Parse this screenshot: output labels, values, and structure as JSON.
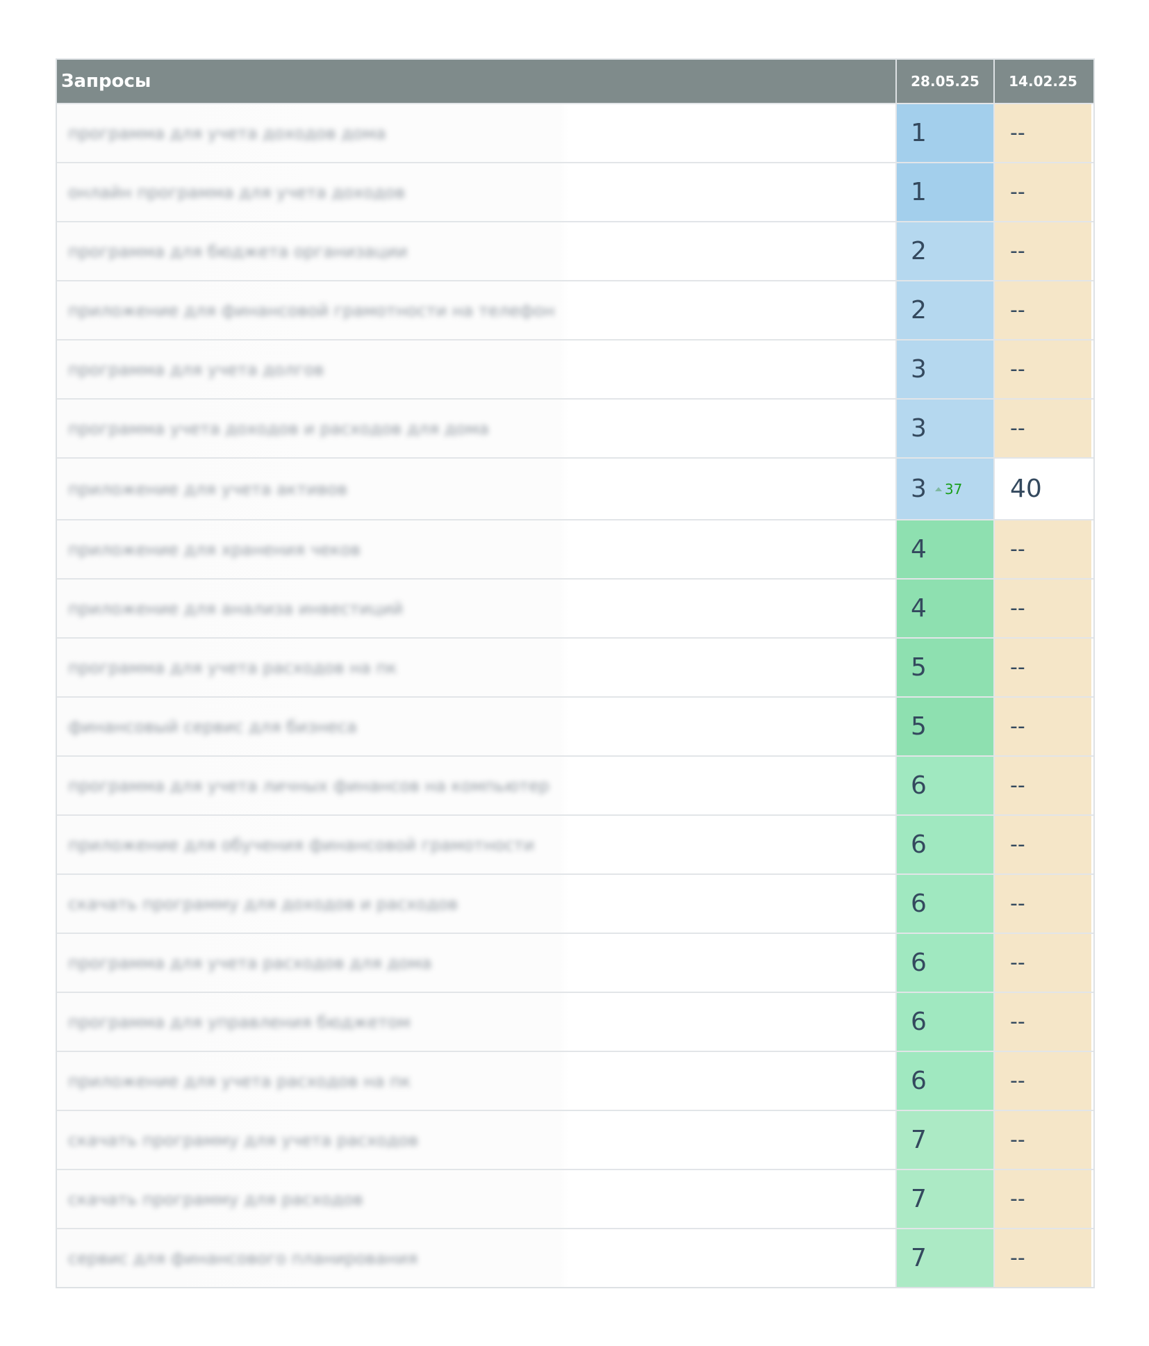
{
  "header": {
    "query_col": "Запросы",
    "dates": [
      "28.05.25",
      "14.02.25"
    ]
  },
  "colors": {
    "header": "#7f8b8b",
    "pos1": "#a3cfec",
    "pos2_3": "#b5d8ef",
    "pos4_5": "#8ee0b0",
    "pos6": "#a0e8c0",
    "pos7": "#aceac5",
    "no_data": "#f5e6c8",
    "change_up": "#1a9e1a"
  },
  "rows": [
    {
      "query": "программа для учета доходов дома",
      "pos": "1",
      "prev": "--"
    },
    {
      "query": "онлайн программа для учета доходов",
      "pos": "1",
      "prev": "--"
    },
    {
      "query": "программа для бюджета организации",
      "pos": "2",
      "prev": "--"
    },
    {
      "query": "приложение для финансовой грамотности на телефон",
      "pos": "2",
      "prev": "--"
    },
    {
      "query": "программа для учета долгов",
      "pos": "3",
      "prev": "--"
    },
    {
      "query": "программа учета доходов и расходов для дома",
      "pos": "3",
      "prev": "--"
    },
    {
      "query": "приложение для учета активов",
      "pos": "3",
      "change": "37",
      "change_icon": "triangle-up-icon",
      "prev": "40"
    },
    {
      "query": "приложение для хранения чеков",
      "pos": "4",
      "prev": "--"
    },
    {
      "query": "приложение для анализа инвестиций",
      "pos": "4",
      "prev": "--"
    },
    {
      "query": "программа для учета расходов на пк",
      "pos": "5",
      "prev": "--"
    },
    {
      "query": "финансовый сервис для бизнеса",
      "pos": "5",
      "prev": "--"
    },
    {
      "query": "программа для учета личных финансов на компьютер",
      "pos": "6",
      "prev": "--"
    },
    {
      "query": "приложение для обучения финансовой грамотности",
      "pos": "6",
      "prev": "--"
    },
    {
      "query": "скачать программу для доходов и расходов",
      "pos": "6",
      "prev": "--"
    },
    {
      "query": "программа для учета расходов для дома",
      "pos": "6",
      "prev": "--"
    },
    {
      "query": "программа для управления бюджетом",
      "pos": "6",
      "prev": "--"
    },
    {
      "query": "приложение для учета расходов на пк",
      "pos": "6",
      "prev": "--"
    },
    {
      "query": "скачать программу для учета расходов",
      "pos": "7",
      "prev": "--"
    },
    {
      "query": "скачать программу для расходов",
      "pos": "7",
      "prev": "--"
    },
    {
      "query": "сервис для финансового планирования",
      "pos": "7",
      "prev": "--"
    }
  ]
}
